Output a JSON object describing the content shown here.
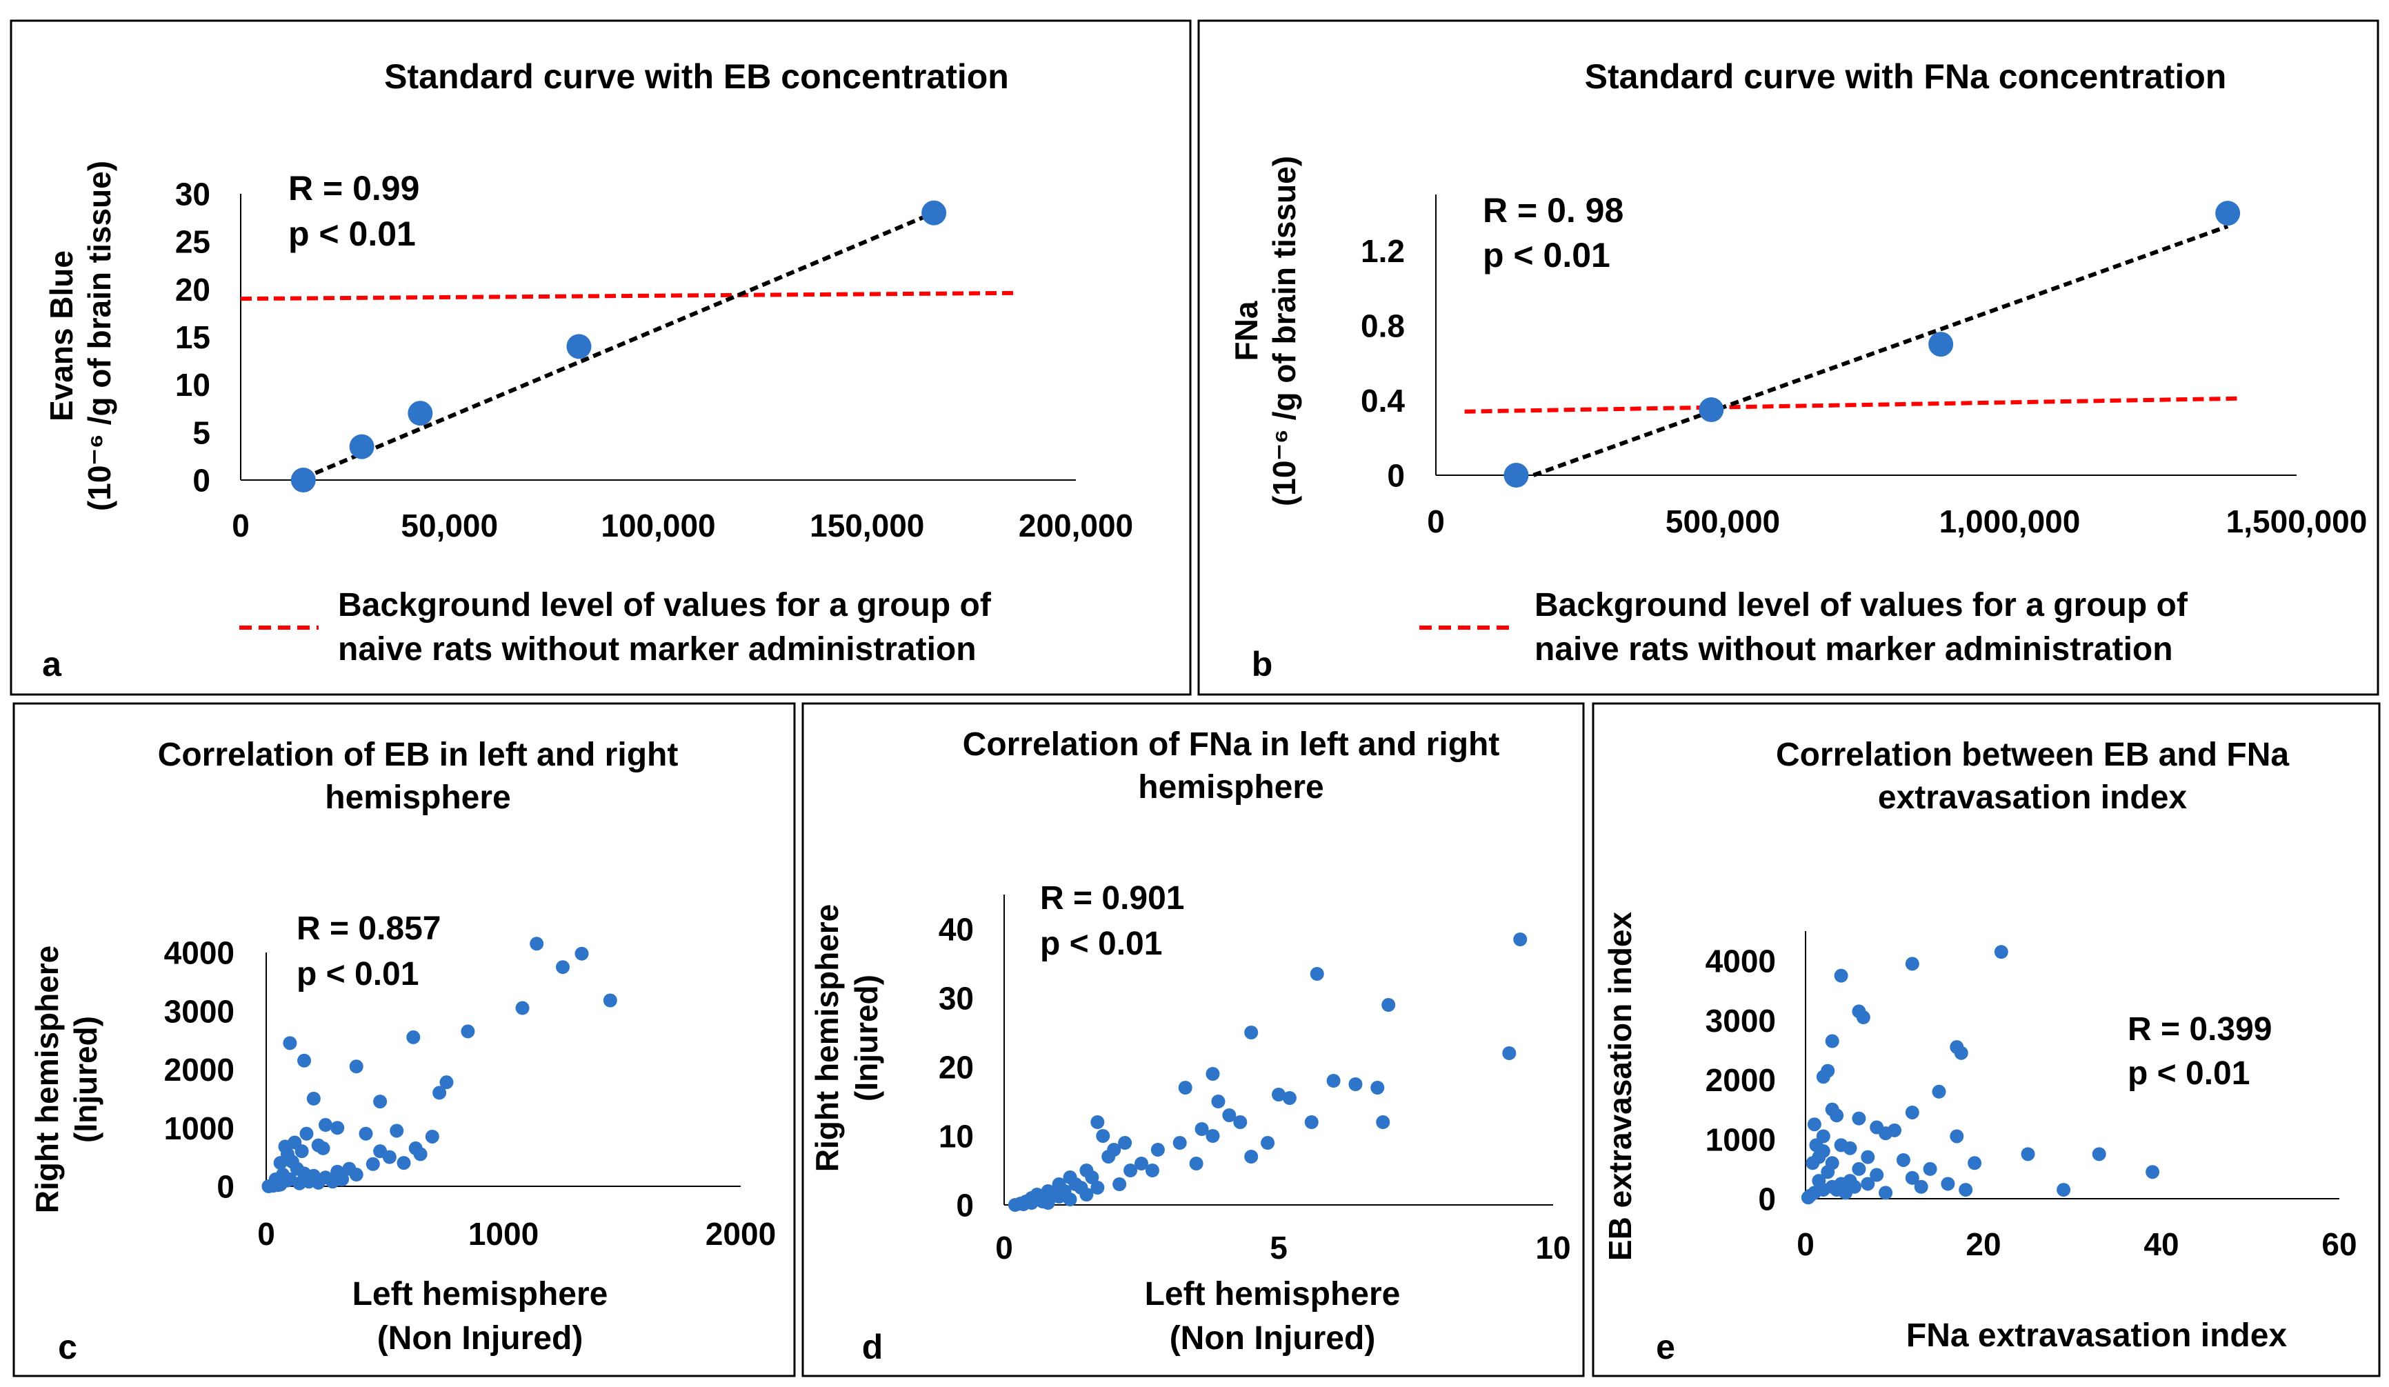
{
  "colors": {
    "point": "#2E75C9",
    "trend": "#000000",
    "background_line": "#FF0000",
    "frame": "#000000"
  },
  "chart_data": [
    {
      "panel_label": "a",
      "type": "scatter",
      "title": [
        "Standard curve with EB concentration"
      ],
      "ylabel": [
        "Evans Blue",
        "(10⁻⁶ /g of brain tissue)"
      ],
      "xlabel": [],
      "xlim": [
        0,
        200000
      ],
      "ylim": [
        0,
        30
      ],
      "xticks": [
        0,
        50000,
        100000,
        150000,
        200000
      ],
      "xtick_labels": [
        "0",
        "50,000",
        "100,000",
        "150,000",
        "200,000"
      ],
      "yticks": [
        0,
        5,
        10,
        15,
        20,
        25,
        30
      ],
      "ytick_labels": [
        "0",
        "5",
        "10",
        "15",
        "20",
        "25",
        "30"
      ],
      "stats": [
        "R = 0.99",
        "p < 0.01"
      ],
      "points": [
        [
          15000,
          0
        ],
        [
          29000,
          3.5
        ],
        [
          43000,
          7
        ],
        [
          81000,
          14
        ],
        [
          166000,
          28
        ]
      ],
      "trendline": [
        [
          15000,
          0.2
        ],
        [
          166000,
          28
        ]
      ],
      "background_line": [
        [
          0,
          19
        ],
        [
          185000,
          19.6
        ]
      ],
      "legend": [
        "Background level of values for a group of",
        "naive rats without marker administration"
      ]
    },
    {
      "panel_label": "b",
      "type": "scatter",
      "title": [
        "Standard curve with FNa concentration"
      ],
      "ylabel": [
        "FNa",
        "(10⁻⁶ /g of brain tissue)"
      ],
      "xlabel": [],
      "xlim": [
        0,
        1500000
      ],
      "ylim": [
        0,
        1.5
      ],
      "xticks": [
        0,
        500000,
        1000000,
        1500000
      ],
      "xtick_labels": [
        "0",
        "500,000",
        "1,000,000",
        "1,500,000"
      ],
      "yticks": [
        0,
        0.4,
        0.8,
        1.2
      ],
      "ytick_labels": [
        "0",
        "0.4",
        "0.8",
        "1.2"
      ],
      "stats": [
        "R = 0. 98",
        "p < 0.01"
      ],
      "points": [
        [
          140000,
          0
        ],
        [
          480000,
          0.35
        ],
        [
          880000,
          0.7
        ],
        [
          1380000,
          1.4
        ]
      ],
      "trendline": [
        [
          170000,
          0
        ],
        [
          1380000,
          1.33
        ]
      ],
      "background_line": [
        [
          50000,
          0.34
        ],
        [
          1400000,
          0.41
        ]
      ],
      "legend": [
        "Background level of values for a group of",
        "naive rats without marker administration"
      ]
    },
    {
      "panel_label": "c",
      "type": "scatter",
      "title": [
        "Correlation of EB in left and right",
        "hemisphere"
      ],
      "ylabel": [
        "Right hemisphere",
        "(Injured)"
      ],
      "xlabel": [
        "Left hemisphere",
        "(Non Injured)"
      ],
      "xlim": [
        0,
        2000
      ],
      "ylim": [
        0,
        4000
      ],
      "xticks": [
        0,
        1000,
        2000
      ],
      "xtick_labels": [
        "0",
        "1000",
        "2000"
      ],
      "yticks": [
        0,
        1000,
        2000,
        3000,
        4000
      ],
      "ytick_labels": [
        "0",
        "1000",
        "2000",
        "3000",
        "4000"
      ],
      "stats": [
        "R = 0.857",
        "p < 0.01"
      ],
      "points": [
        [
          1140,
          4150
        ],
        [
          1330,
          3980
        ],
        [
          1250,
          3750
        ],
        [
          1450,
          3180
        ],
        [
          1080,
          3050
        ],
        [
          850,
          2650
        ],
        [
          620,
          2550
        ],
        [
          100,
          2450
        ],
        [
          160,
          2150
        ],
        [
          380,
          2050
        ],
        [
          760,
          1780
        ],
        [
          730,
          1600
        ],
        [
          480,
          1450
        ],
        [
          200,
          1500
        ],
        [
          250,
          1050
        ],
        [
          300,
          1000
        ],
        [
          550,
          950
        ],
        [
          420,
          900
        ],
        [
          700,
          850
        ],
        [
          630,
          650
        ],
        [
          480,
          600
        ],
        [
          220,
          700
        ],
        [
          150,
          600
        ],
        [
          120,
          750
        ],
        [
          80,
          680
        ],
        [
          90,
          550
        ],
        [
          110,
          420
        ],
        [
          60,
          400
        ],
        [
          130,
          300
        ],
        [
          160,
          220
        ],
        [
          200,
          180
        ],
        [
          250,
          150
        ],
        [
          300,
          250
        ],
        [
          350,
          300
        ],
        [
          280,
          80
        ],
        [
          180,
          80
        ],
        [
          90,
          100
        ],
        [
          60,
          30
        ],
        [
          30,
          10
        ],
        [
          10,
          0
        ],
        [
          40,
          50
        ],
        [
          70,
          200
        ],
        [
          100,
          120
        ],
        [
          140,
          50
        ],
        [
          220,
          60
        ],
        [
          320,
          120
        ],
        [
          380,
          200
        ],
        [
          450,
          380
        ],
        [
          520,
          500
        ],
        [
          580,
          400
        ],
        [
          650,
          550
        ],
        [
          170,
          900
        ],
        [
          240,
          650
        ],
        [
          40,
          120
        ],
        [
          50,
          20
        ]
      ]
    },
    {
      "panel_label": "d",
      "type": "scatter",
      "title": [
        "Correlation of FNa in left and right",
        "hemisphere"
      ],
      "ylabel": [
        "Right hemisphere",
        "(Injured)"
      ],
      "xlabel": [
        "Left hemisphere",
        "(Non Injured)"
      ],
      "xlim": [
        0,
        10
      ],
      "ylim": [
        0,
        45
      ],
      "xticks": [
        0,
        5,
        10
      ],
      "xtick_labels": [
        "0",
        "5",
        "10"
      ],
      "yticks": [
        0,
        10,
        20,
        30,
        40
      ],
      "ytick_labels": [
        "0",
        "10",
        "20",
        "30",
        "40"
      ],
      "stats": [
        "R = 0.901",
        "p < 0.01"
      ],
      "points": [
        [
          9.4,
          38.5
        ],
        [
          5.7,
          33.5
        ],
        [
          7.0,
          29
        ],
        [
          9.2,
          22
        ],
        [
          4.5,
          25
        ],
        [
          3.3,
          17
        ],
        [
          3.8,
          19
        ],
        [
          6.0,
          18
        ],
        [
          6.4,
          17.5
        ],
        [
          6.8,
          17
        ],
        [
          5.0,
          16
        ],
        [
          5.2,
          15.5
        ],
        [
          3.9,
          15
        ],
        [
          4.1,
          13
        ],
        [
          4.3,
          12
        ],
        [
          5.6,
          12
        ],
        [
          6.9,
          12
        ],
        [
          3.6,
          11
        ],
        [
          3.2,
          9
        ],
        [
          2.8,
          8
        ],
        [
          2.0,
          8
        ],
        [
          2.2,
          9
        ],
        [
          1.8,
          10
        ],
        [
          1.7,
          12
        ],
        [
          1.9,
          7
        ],
        [
          2.5,
          6
        ],
        [
          2.7,
          5
        ],
        [
          3.5,
          6
        ],
        [
          4.5,
          7
        ],
        [
          3.8,
          10
        ],
        [
          4.8,
          9
        ],
        [
          1.5,
          5
        ],
        [
          1.2,
          4
        ],
        [
          1.0,
          3
        ],
        [
          0.8,
          2
        ],
        [
          0.6,
          1.5
        ],
        [
          0.5,
          1
        ],
        [
          0.4,
          0.5
        ],
        [
          0.3,
          0.2
        ],
        [
          0.2,
          0
        ],
        [
          0.7,
          0.5
        ],
        [
          0.9,
          1.5
        ],
        [
          1.1,
          2
        ],
        [
          1.3,
          3
        ],
        [
          1.4,
          2.5
        ],
        [
          1.6,
          4
        ],
        [
          0.5,
          0.3
        ],
        [
          0.35,
          0.1
        ],
        [
          1.0,
          1.2
        ],
        [
          1.2,
          0.8
        ],
        [
          2.1,
          3
        ],
        [
          2.3,
          5
        ],
        [
          0.8,
          0.3
        ],
        [
          1.5,
          1.5
        ],
        [
          1.7,
          2.5
        ]
      ]
    },
    {
      "panel_label": "e",
      "type": "scatter",
      "title": [
        "Correlation between EB and FNa",
        "extravasation index"
      ],
      "ylabel": [
        "EB extravasation index"
      ],
      "xlabel": [
        "FNa extravasation index"
      ],
      "xlim": [
        0,
        60
      ],
      "ylim": [
        0,
        4500
      ],
      "xticks": [
        0,
        20,
        40,
        60
      ],
      "xtick_labels": [
        "0",
        "20",
        "40",
        "60"
      ],
      "yticks": [
        0,
        1000,
        2000,
        3000,
        4000
      ],
      "ytick_labels": [
        "0",
        "1000",
        "2000",
        "3000",
        "4000"
      ],
      "stats": [
        "R = 0.399",
        "p < 0.01"
      ],
      "points": [
        [
          22,
          4150
        ],
        [
          12,
          3950
        ],
        [
          4,
          3750
        ],
        [
          6,
          3150
        ],
        [
          6.5,
          3050
        ],
        [
          3,
          2650
        ],
        [
          17,
          2550
        ],
        [
          17.5,
          2450
        ],
        [
          2.5,
          2150
        ],
        [
          2,
          2050
        ],
        [
          15,
          1800
        ],
        [
          3,
          1500
        ],
        [
          12,
          1450
        ],
        [
          1,
          1250
        ],
        [
          6,
          1350
        ],
        [
          10,
          1150
        ],
        [
          9,
          1100
        ],
        [
          17,
          1050
        ],
        [
          4,
          900
        ],
        [
          5,
          850
        ],
        [
          2,
          800
        ],
        [
          1.5,
          700
        ],
        [
          3,
          600
        ],
        [
          7,
          700
        ],
        [
          11,
          650
        ],
        [
          25,
          750
        ],
        [
          33,
          750
        ],
        [
          39,
          450
        ],
        [
          19,
          600
        ],
        [
          29,
          150
        ],
        [
          14,
          500
        ],
        [
          12,
          350
        ],
        [
          8,
          400
        ],
        [
          6,
          500
        ],
        [
          5,
          300
        ],
        [
          4,
          250
        ],
        [
          3,
          200
        ],
        [
          2,
          150
        ],
        [
          1,
          100
        ],
        [
          0.5,
          50
        ],
        [
          0.3,
          20
        ],
        [
          1.5,
          300
        ],
        [
          2.5,
          450
        ],
        [
          3.5,
          150
        ],
        [
          4.5,
          100
        ],
        [
          5.5,
          200
        ],
        [
          7,
          250
        ],
        [
          9,
          100
        ],
        [
          13,
          200
        ],
        [
          16,
          250
        ],
        [
          18,
          150
        ],
        [
          0.8,
          600
        ],
        [
          1.2,
          900
        ],
        [
          2,
          1050
        ],
        [
          3.5,
          1400
        ],
        [
          8,
          1200
        ]
      ]
    }
  ]
}
